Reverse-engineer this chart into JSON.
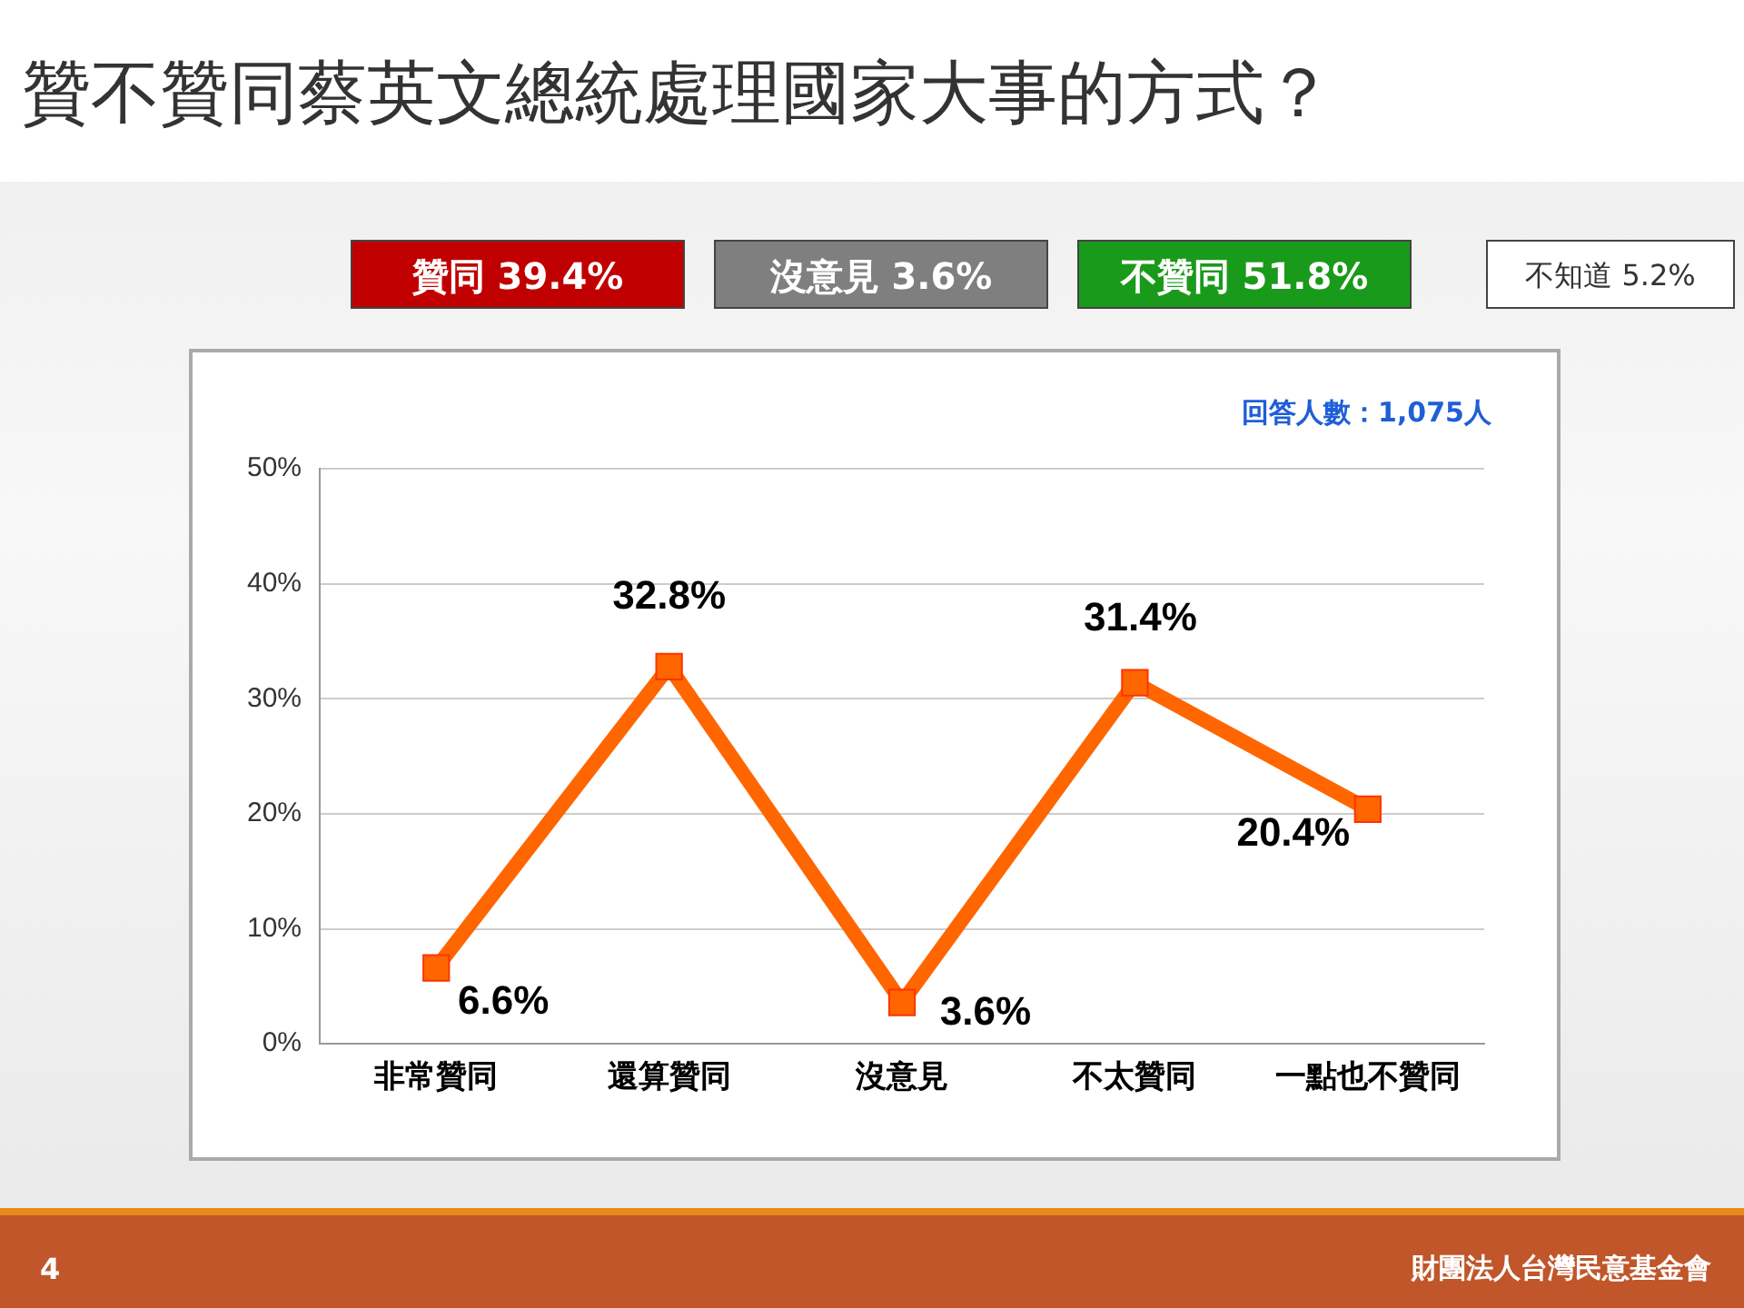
{
  "chart_data": {
    "type": "line",
    "title": "贊不贊同蔡英文總統處理國家大事的方式？",
    "categories": [
      "非常贊同",
      "還算贊同",
      "沒意見",
      "不太贊同",
      "一點也不贊同"
    ],
    "values": [
      6.6,
      32.8,
      3.6,
      31.4,
      20.4
    ],
    "value_labels": [
      "6.6%",
      "32.8%",
      "3.6%",
      "31.4%",
      "20.4%"
    ],
    "color": "#ff6600",
    "marker": "square",
    "grid": "y",
    "legend": false,
    "ylim": [
      0,
      50
    ],
    "yticks": [
      {
        "value": 0,
        "label": "0%"
      },
      {
        "value": 10,
        "label": "10%"
      },
      {
        "value": 20,
        "label": "20%"
      },
      {
        "value": 30,
        "label": "30%"
      },
      {
        "value": 40,
        "label": "40%"
      },
      {
        "value": 50,
        "label": "50%"
      }
    ],
    "annotations": [
      "贊同 39.4%",
      "沒意見 3.6%",
      "不贊同 51.8%",
      "不知道 5.2%",
      "回答人數：1,075人",
      "4",
      "財團法人台灣民意基金會"
    ]
  }
}
